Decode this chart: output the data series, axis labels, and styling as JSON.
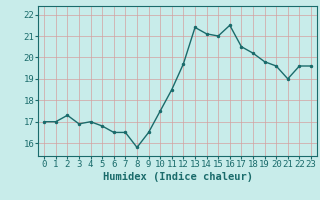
{
  "x": [
    0,
    1,
    2,
    3,
    4,
    5,
    6,
    7,
    8,
    9,
    10,
    11,
    12,
    13,
    14,
    15,
    16,
    17,
    18,
    19,
    20,
    21,
    22,
    23
  ],
  "y": [
    17.0,
    17.0,
    17.3,
    16.9,
    17.0,
    16.8,
    16.5,
    16.5,
    15.8,
    16.5,
    17.5,
    18.5,
    19.7,
    21.4,
    21.1,
    21.0,
    21.5,
    20.5,
    20.2,
    19.8,
    19.6,
    19.0,
    19.6,
    19.6
  ],
  "line_color": "#1a6b6b",
  "marker": ".",
  "marker_size": 3,
  "bg_color": "#c8ecea",
  "grid_color": "#d4a0a0",
  "ylabel_ticks": [
    16,
    17,
    18,
    19,
    20,
    21,
    22
  ],
  "ylim": [
    15.4,
    22.4
  ],
  "xlim": [
    -0.5,
    23.5
  ],
  "xlabel": "Humidex (Indice chaleur)",
  "xlabel_fontsize": 7.5,
  "tick_fontsize": 6.5,
  "line_width": 1.0,
  "spine_color": "#1a6b6b"
}
